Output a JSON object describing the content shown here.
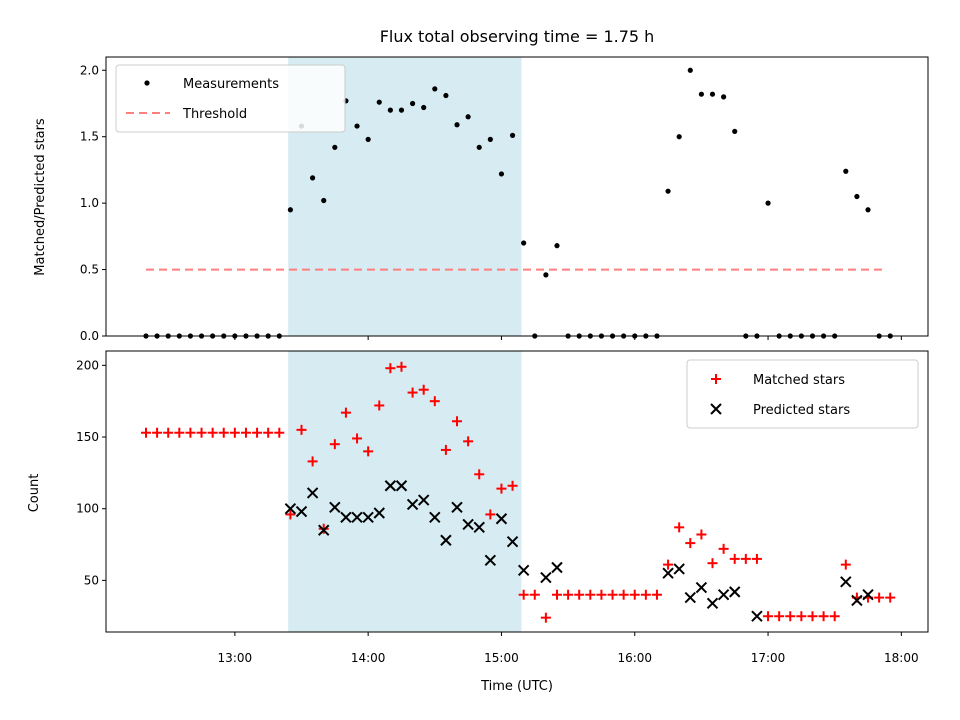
{
  "chart_data": [
    {
      "type": "scatter",
      "title": "Flux total observing time = 1.75 h",
      "xlabel": "",
      "ylabel": "Matched/Predicted stars",
      "ylim": [
        0,
        2.1
      ],
      "yticks": [
        "0.0",
        "0.5",
        "1.0",
        "1.5",
        "2.0"
      ],
      "legend": {
        "placement": "top-left",
        "entries": [
          "Measurements",
          "Threshold"
        ]
      },
      "grid": false,
      "observing_window": {
        "start": "13:24",
        "end": "15:09",
        "color": "#add8e6"
      },
      "threshold": {
        "name": "Threshold",
        "value": 0.5,
        "x_start": "12:20",
        "x_end": "17:53",
        "color": "#ff7f7f"
      },
      "series": [
        {
          "name": "Measurements",
          "color": "#000000",
          "marker": "dot",
          "x": [
            "12:20",
            "12:25",
            "12:30",
            "12:35",
            "12:40",
            "12:45",
            "12:50",
            "12:55",
            "13:00",
            "13:05",
            "13:10",
            "13:15",
            "13:20",
            "13:25",
            "13:30",
            "13:35",
            "13:40",
            "13:45",
            "13:50",
            "13:55",
            "14:00",
            "14:05",
            "14:10",
            "14:15",
            "14:20",
            "14:25",
            "14:30",
            "14:35",
            "14:40",
            "14:45",
            "14:50",
            "14:55",
            "15:00",
            "15:05",
            "15:10",
            "15:15",
            "15:20",
            "15:25",
            "15:30",
            "15:35",
            "15:40",
            "15:45",
            "15:50",
            "15:55",
            "16:00",
            "16:05",
            "16:10",
            "16:15",
            "16:20",
            "16:25",
            "16:30",
            "16:35",
            "16:40",
            "16:45",
            "16:50",
            "16:55",
            "17:00",
            "17:05",
            "17:10",
            "17:15",
            "17:20",
            "17:25",
            "17:30",
            "17:35",
            "17:40",
            "17:45",
            "17:50",
            "17:55"
          ],
          "y": [
            0,
            0,
            0,
            0,
            0,
            0,
            0,
            0,
            0,
            0,
            0,
            0,
            0,
            0.95,
            1.58,
            1.19,
            1.02,
            1.42,
            1.77,
            1.58,
            1.48,
            1.76,
            1.7,
            1.7,
            1.75,
            1.72,
            1.86,
            1.81,
            1.59,
            1.65,
            1.42,
            1.48,
            1.22,
            1.51,
            0.7,
            0,
            0.46,
            0.68,
            0,
            0,
            0,
            0,
            0,
            0,
            0,
            0,
            0,
            1.09,
            1.5,
            2.0,
            1.82,
            1.82,
            1.8,
            1.54,
            0,
            0,
            1.0,
            0,
            0,
            0,
            0,
            0,
            0,
            1.24,
            1.05,
            0.95,
            0,
            0
          ]
        }
      ]
    },
    {
      "type": "scatter",
      "title": "",
      "xlabel": "Time (UTC)",
      "ylabel": "Count",
      "ylim": [
        14,
        210
      ],
      "yticks": [
        "50",
        "100",
        "150",
        "200"
      ],
      "xlim": [
        "12:02",
        "18:12"
      ],
      "xticks": [
        "13:00",
        "14:00",
        "15:00",
        "16:00",
        "17:00",
        "18:00"
      ],
      "legend": {
        "placement": "top-right",
        "entries": [
          "Matched stars",
          "Predicted stars"
        ]
      },
      "grid": false,
      "observing_window": {
        "start": "13:24",
        "end": "15:09",
        "color": "#add8e6"
      },
      "series": [
        {
          "name": "Matched stars",
          "color": "#ff0000",
          "marker": "plus",
          "x": [
            "12:20",
            "12:25",
            "12:30",
            "12:35",
            "12:40",
            "12:45",
            "12:50",
            "12:55",
            "13:00",
            "13:05",
            "13:10",
            "13:15",
            "13:20",
            "13:25",
            "13:30",
            "13:35",
            "13:40",
            "13:45",
            "13:50",
            "13:55",
            "14:00",
            "14:05",
            "14:10",
            "14:15",
            "14:20",
            "14:25",
            "14:30",
            "14:35",
            "14:40",
            "14:45",
            "14:50",
            "14:55",
            "15:00",
            "15:05",
            "15:10",
            "15:15",
            "15:20",
            "15:25",
            "15:30",
            "15:35",
            "15:40",
            "15:45",
            "15:50",
            "15:55",
            "16:00",
            "16:05",
            "16:10",
            "16:15",
            "16:20",
            "16:25",
            "16:30",
            "16:35",
            "16:40",
            "16:45",
            "16:50",
            "16:55",
            "17:00",
            "17:05",
            "17:10",
            "17:15",
            "17:20",
            "17:25",
            "17:30",
            "17:35",
            "17:40",
            "17:45",
            "17:50",
            "17:55"
          ],
          "y": [
            153,
            153,
            153,
            153,
            153,
            153,
            153,
            153,
            153,
            153,
            153,
            153,
            153,
            96,
            155,
            133,
            86,
            145,
            167,
            149,
            140,
            172,
            198,
            199,
            181,
            183,
            175,
            141,
            161,
            147,
            124,
            96,
            114,
            116,
            40,
            40,
            24,
            40,
            40,
            40,
            40,
            40,
            40,
            40,
            40,
            40,
            40,
            61,
            87,
            76,
            82,
            62,
            72,
            65,
            65,
            65,
            25,
            25,
            25,
            25,
            25,
            25,
            25,
            61,
            38,
            38,
            38,
            38
          ]
        },
        {
          "name": "Predicted stars",
          "color": "#000000",
          "marker": "x",
          "x": [
            "13:25",
            "13:30",
            "13:35",
            "13:40",
            "13:45",
            "13:50",
            "13:55",
            "14:00",
            "14:05",
            "14:10",
            "14:15",
            "14:20",
            "14:25",
            "14:30",
            "14:35",
            "14:40",
            "14:45",
            "14:50",
            "14:55",
            "15:00",
            "15:05",
            "15:10",
            "15:20",
            "15:25",
            "16:15",
            "16:20",
            "16:25",
            "16:30",
            "16:35",
            "16:40",
            "16:45",
            "16:55",
            "17:35",
            "17:40",
            "17:45"
          ],
          "y": [
            100,
            98,
            111,
            85,
            101,
            94,
            94,
            94,
            97,
            116,
            116,
            103,
            106,
            94,
            78,
            101,
            89,
            87,
            64,
            93,
            77,
            57,
            52,
            59,
            55,
            58,
            38,
            45,
            34,
            40,
            42,
            25,
            49,
            36,
            40
          ]
        }
      ]
    }
  ]
}
